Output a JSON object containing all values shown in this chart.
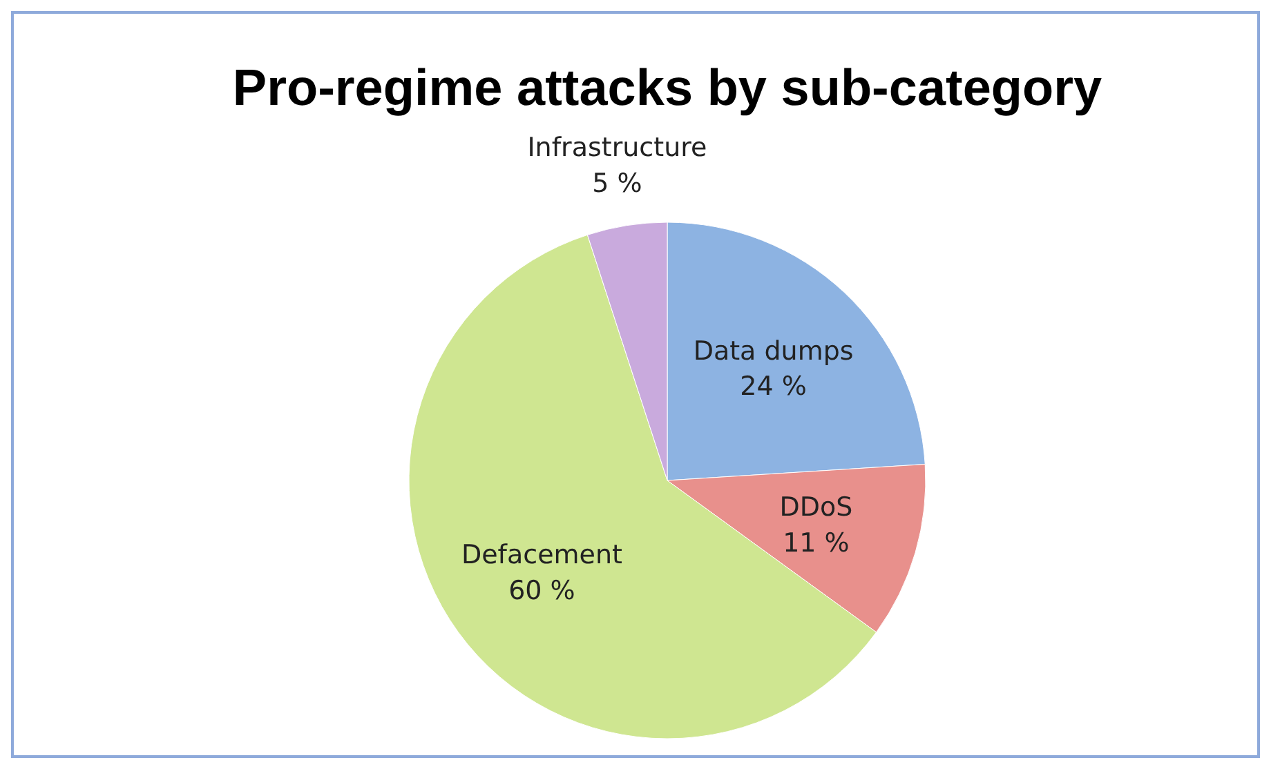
{
  "chart_data": {
    "type": "pie",
    "title": "Pro-regime attacks by sub-category",
    "categories": [
      "Data dumps",
      "DDoS",
      "Defacement",
      "Infrastructure"
    ],
    "values": [
      24,
      11,
      60,
      5
    ],
    "value_labels": [
      "24 %",
      "11 %",
      "60 %",
      "5 %"
    ],
    "colors": [
      "#8db3e2",
      "#e8908c",
      "#cfe691",
      "#c9aadd"
    ]
  }
}
